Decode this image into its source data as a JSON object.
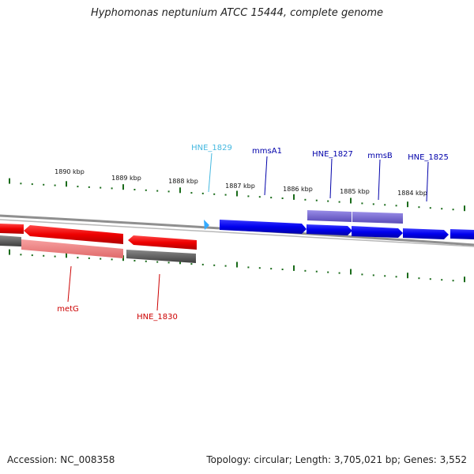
{
  "title": "Hyphomonas neptunium ATCC 15444, complete genome",
  "accession_text": "Accession: NC_008358",
  "topology_text": "Topology: circular; Length: 3,705,021 bp; Genes: 3,552",
  "colors": {
    "forward_cds": "#0000ee",
    "reverse_cds": "#ee0000",
    "forward_rna": "#7a6cd0",
    "reverse_rna": "#f08080",
    "reverse_dark": "#555555",
    "tick": "#1a6b1a",
    "highlight_label": "#44b8e0"
  },
  "ticks": [
    {
      "label": "1890 kbp"
    },
    {
      "label": "1889 kbp"
    },
    {
      "label": "1888 kbp"
    },
    {
      "label": "1887 kbp"
    },
    {
      "label": "1886 kbp"
    },
    {
      "label": "1885 kbp"
    },
    {
      "label": "1884 kbp"
    }
  ],
  "gene_labels": [
    {
      "name": "HNE_1829",
      "strand": "forward",
      "highlight": true
    },
    {
      "name": "mmsA1",
      "strand": "forward",
      "highlight": false
    },
    {
      "name": "HNE_1827",
      "strand": "forward",
      "highlight": false
    },
    {
      "name": "mmsB",
      "strand": "forward",
      "highlight": false
    },
    {
      "name": "HNE_1825",
      "strand": "forward",
      "highlight": false
    },
    {
      "name": "metG",
      "strand": "reverse",
      "highlight": false
    },
    {
      "name": "HNE_1830",
      "strand": "reverse",
      "highlight": false
    }
  ]
}
